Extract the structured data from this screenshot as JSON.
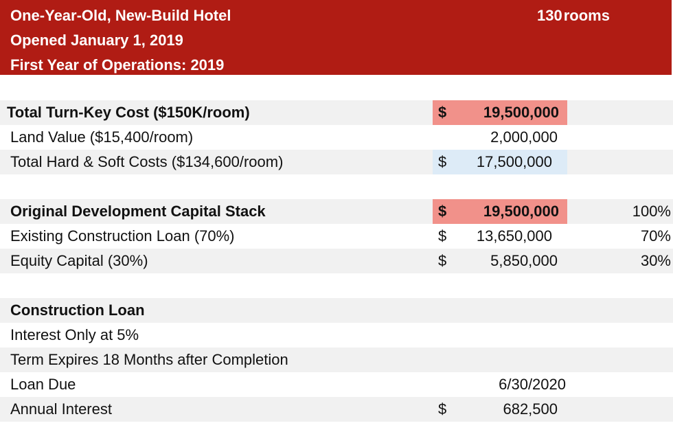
{
  "header": {
    "line1": "One-Year-Old, New-Build Hotel",
    "line2": "Opened January 1, 2019",
    "line3": "First Year of Operations: 2019",
    "rooms_count": "130",
    "rooms_unit": "rooms"
  },
  "colors": {
    "banner_background": "#b01c14",
    "highlight_red": "#f1918a",
    "highlight_blue": "#ddebf7",
    "row_shade": "#f1f1f1"
  },
  "turnkey": {
    "total_label": "Total Turn-Key Cost ($150K/room)",
    "total_dollar": "$",
    "total_value": "19,500,000",
    "land_label": "Land Value ($15,400/room)",
    "land_value": "2,000,000",
    "hard_soft_label": "Total Hard & Soft Costs ($134,600/room)",
    "hard_soft_dollar": "$",
    "hard_soft_value": "17,500,000"
  },
  "capital_stack": {
    "total_label": "Original Development Capital Stack",
    "total_dollar": "$",
    "total_value": "19,500,000",
    "total_pct": "100%",
    "loan_label": "Existing Construction Loan (70%)",
    "loan_dollar": "$",
    "loan_value": "13,650,000",
    "loan_pct": "70%",
    "equity_label": "Equity Capital (30%)",
    "equity_dollar": "$",
    "equity_value": "5,850,000",
    "equity_pct": "30%"
  },
  "construction_loan": {
    "heading": "Construction Loan",
    "interest_terms": "Interest Only at 5%",
    "term_text": "Term Expires 18 Months after Completion",
    "due_label": "Loan Due",
    "due_value": "6/30/2020",
    "annual_label": "Annual Interest",
    "annual_dollar": "$",
    "annual_value": "682,500"
  }
}
